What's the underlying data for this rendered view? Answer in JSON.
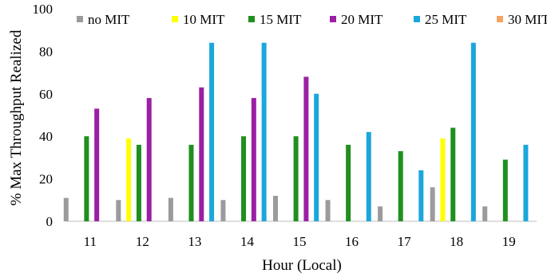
{
  "chart_data": {
    "type": "bar",
    "title": "",
    "xlabel": "Hour (Local)",
    "ylabel": "% Max Throughput Realized",
    "ylim": [
      0,
      100
    ],
    "yticks": [
      "0",
      "20",
      "40",
      "60",
      "80",
      "100"
    ],
    "grid": false,
    "legend_position": "top",
    "categories": [
      "11",
      "12",
      "13",
      "14",
      "15",
      "16",
      "17",
      "18",
      "19"
    ],
    "series": [
      {
        "name": "no MIT",
        "color": "#9b9b9b",
        "values": [
          11,
          10,
          11,
          10,
          12,
          10,
          7,
          16,
          7
        ]
      },
      {
        "name": "10 MIT",
        "color": "#ffff00",
        "values": [
          null,
          39,
          null,
          null,
          null,
          null,
          null,
          39,
          null
        ]
      },
      {
        "name": "15 MIT",
        "color": "#1f8f1f",
        "values": [
          40,
          36,
          36,
          40,
          40,
          36,
          33,
          44,
          29
        ]
      },
      {
        "name": "20 MIT",
        "color": "#9b1fa5",
        "values": [
          53,
          58,
          63,
          58,
          68,
          null,
          null,
          null,
          null
        ]
      },
      {
        "name": "25 MIT",
        "color": "#1aa7dc",
        "values": [
          null,
          null,
          84,
          84,
          60,
          42,
          24,
          84,
          36
        ]
      },
      {
        "name": "30 MIT",
        "color": "#f4a460",
        "values": [
          null,
          null,
          null,
          null,
          null,
          null,
          null,
          null,
          null
        ]
      }
    ]
  }
}
